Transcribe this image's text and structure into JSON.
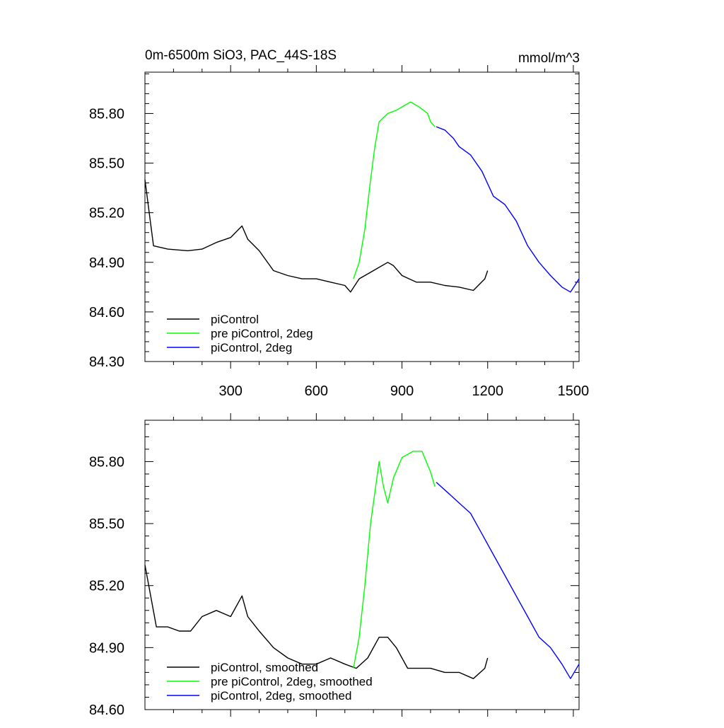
{
  "chart_data": [
    {
      "type": "line",
      "title": "0m-6500m SiO3, PAC_44S-18S",
      "units_label": "mmol/m^3",
      "xlim": [
        0,
        1520
      ],
      "ylim": [
        84.3,
        86.05
      ],
      "x_ticks": [
        300,
        600,
        900,
        1200,
        1500
      ],
      "x_tick_labels": [
        "300",
        "600",
        "900",
        "1200",
        "1500"
      ],
      "y_ticks": [
        84.3,
        84.6,
        84.9,
        85.2,
        85.5,
        85.8
      ],
      "y_tick_labels": [
        "84.30",
        "84.60",
        "84.90",
        "85.20",
        "85.50",
        "85.80"
      ],
      "legend_position": "bottom-left",
      "series": [
        {
          "name": "piControl",
          "color": "#000000",
          "points": [
            [
              0,
              85.4
            ],
            [
              30,
              85.0
            ],
            [
              80,
              84.98
            ],
            [
              150,
              84.97
            ],
            [
              200,
              84.98
            ],
            [
              250,
              85.02
            ],
            [
              300,
              85.05
            ],
            [
              340,
              85.12
            ],
            [
              360,
              85.04
            ],
            [
              400,
              84.97
            ],
            [
              450,
              84.85
            ],
            [
              500,
              84.82
            ],
            [
              550,
              84.8
            ],
            [
              600,
              84.8
            ],
            [
              650,
              84.78
            ],
            [
              700,
              84.76
            ],
            [
              720,
              84.72
            ],
            [
              750,
              84.8
            ],
            [
              800,
              84.85
            ],
            [
              850,
              84.9
            ],
            [
              870,
              84.88
            ],
            [
              900,
              84.82
            ],
            [
              950,
              84.78
            ],
            [
              1000,
              84.78
            ],
            [
              1050,
              84.76
            ],
            [
              1100,
              84.75
            ],
            [
              1150,
              84.73
            ],
            [
              1190,
              84.8
            ],
            [
              1200,
              84.85
            ]
          ]
        },
        {
          "name": "pre piControl, 2deg",
          "color": "#00ff00",
          "points": [
            [
              730,
              84.8
            ],
            [
              750,
              84.9
            ],
            [
              770,
              85.1
            ],
            [
              790,
              85.4
            ],
            [
              805,
              85.6
            ],
            [
              820,
              85.75
            ],
            [
              850,
              85.8
            ],
            [
              880,
              85.82
            ],
            [
              900,
              85.84
            ],
            [
              930,
              85.87
            ],
            [
              960,
              85.84
            ],
            [
              990,
              85.8
            ],
            [
              1000,
              85.75
            ],
            [
              1015,
              85.72
            ]
          ]
        },
        {
          "name": "piControl, 2deg",
          "color": "#0000ff",
          "points": [
            [
              1020,
              85.72
            ],
            [
              1050,
              85.7
            ],
            [
              1080,
              85.65
            ],
            [
              1100,
              85.6
            ],
            [
              1140,
              85.55
            ],
            [
              1180,
              85.45
            ],
            [
              1220,
              85.3
            ],
            [
              1260,
              85.25
            ],
            [
              1300,
              85.15
            ],
            [
              1340,
              85.0
            ],
            [
              1380,
              84.9
            ],
            [
              1420,
              84.82
            ],
            [
              1460,
              84.75
            ],
            [
              1490,
              84.72
            ],
            [
              1520,
              84.8
            ]
          ]
        }
      ]
    },
    {
      "type": "line",
      "xlim": [
        0,
        1520
      ],
      "ylim": [
        84.6,
        86.0
      ],
      "x_ticks": [
        300,
        600,
        900,
        1200,
        1500
      ],
      "y_ticks": [
        84.6,
        84.9,
        85.2,
        85.5,
        85.8
      ],
      "y_tick_labels": [
        "84.60",
        "84.90",
        "85.20",
        "85.50",
        "85.80"
      ],
      "legend_position": "bottom-left",
      "series": [
        {
          "name": "piControl, smoothed",
          "color": "#000000",
          "points": [
            [
              0,
              85.3
            ],
            [
              20,
              85.15
            ],
            [
              40,
              85.0
            ],
            [
              80,
              85.0
            ],
            [
              120,
              84.98
            ],
            [
              160,
              84.98
            ],
            [
              200,
              85.05
            ],
            [
              250,
              85.08
            ],
            [
              300,
              85.05
            ],
            [
              340,
              85.15
            ],
            [
              360,
              85.05
            ],
            [
              400,
              84.98
            ],
            [
              450,
              84.9
            ],
            [
              500,
              84.85
            ],
            [
              550,
              84.82
            ],
            [
              600,
              84.82
            ],
            [
              650,
              84.85
            ],
            [
              700,
              84.82
            ],
            [
              740,
              84.8
            ],
            [
              780,
              84.85
            ],
            [
              820,
              84.95
            ],
            [
              850,
              84.95
            ],
            [
              880,
              84.9
            ],
            [
              920,
              84.8
            ],
            [
              960,
              84.8
            ],
            [
              1000,
              84.8
            ],
            [
              1050,
              84.78
            ],
            [
              1100,
              84.78
            ],
            [
              1150,
              84.75
            ],
            [
              1190,
              84.8
            ],
            [
              1200,
              84.85
            ]
          ]
        },
        {
          "name": "pre piControl, 2deg, smoothed",
          "color": "#00ff00",
          "points": [
            [
              730,
              84.8
            ],
            [
              750,
              84.95
            ],
            [
              770,
              85.2
            ],
            [
              790,
              85.5
            ],
            [
              810,
              85.7
            ],
            [
              820,
              85.8
            ],
            [
              835,
              85.68
            ],
            [
              850,
              85.6
            ],
            [
              870,
              85.72
            ],
            [
              900,
              85.82
            ],
            [
              940,
              85.85
            ],
            [
              970,
              85.85
            ],
            [
              1000,
              85.75
            ],
            [
              1015,
              85.68
            ]
          ]
        },
        {
          "name": "piControl, 2deg, smoothed",
          "color": "#0000ff",
          "points": [
            [
              1020,
              85.7
            ],
            [
              1060,
              85.65
            ],
            [
              1100,
              85.6
            ],
            [
              1140,
              85.55
            ],
            [
              1180,
              85.45
            ],
            [
              1220,
              85.35
            ],
            [
              1260,
              85.25
            ],
            [
              1300,
              85.15
            ],
            [
              1340,
              85.05
            ],
            [
              1380,
              84.95
            ],
            [
              1420,
              84.9
            ],
            [
              1460,
              84.82
            ],
            [
              1490,
              84.75
            ],
            [
              1520,
              84.82
            ]
          ]
        }
      ]
    }
  ]
}
